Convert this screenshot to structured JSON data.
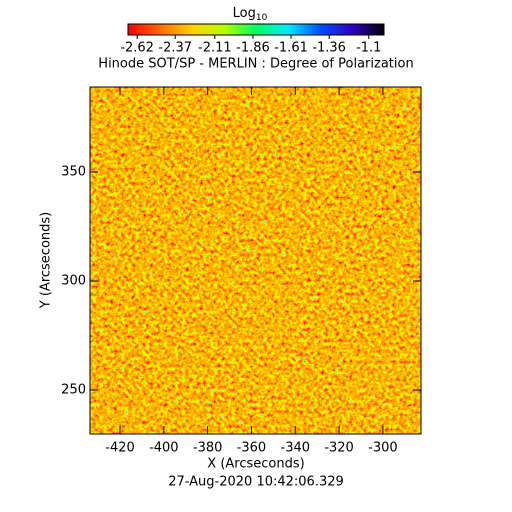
{
  "chart_data": {
    "type": "heatmap",
    "title": "Hinode SOT/SP - MERLIN : Degree of Polarization",
    "colorbar": {
      "label": "Log",
      "label_sub": "10",
      "lim": [
        -2.68,
        -1.0
      ],
      "ticks": [
        -2.62,
        -2.37,
        -2.11,
        -1.86,
        -1.61,
        -1.36,
        -1.1
      ],
      "colormap": [
        "#ff0000",
        "#ff6a00",
        "#ffd000",
        "#b4ff00",
        "#00ff60",
        "#00e8ff",
        "#0050ff",
        "#3000c0",
        "#000000"
      ]
    },
    "x_label": "X (Arcseconds)",
    "y_label": "Y (Arcseconds)",
    "xlim": [
      -433.7,
      -282.6
    ],
    "ylim": [
      229.8,
      389
    ],
    "xticks": [
      -420,
      -400,
      -380,
      -360,
      -340,
      -320,
      -300
    ],
    "yticks": [
      250,
      300,
      350
    ],
    "date": "27-Aug-2020 10:42:06.329"
  }
}
